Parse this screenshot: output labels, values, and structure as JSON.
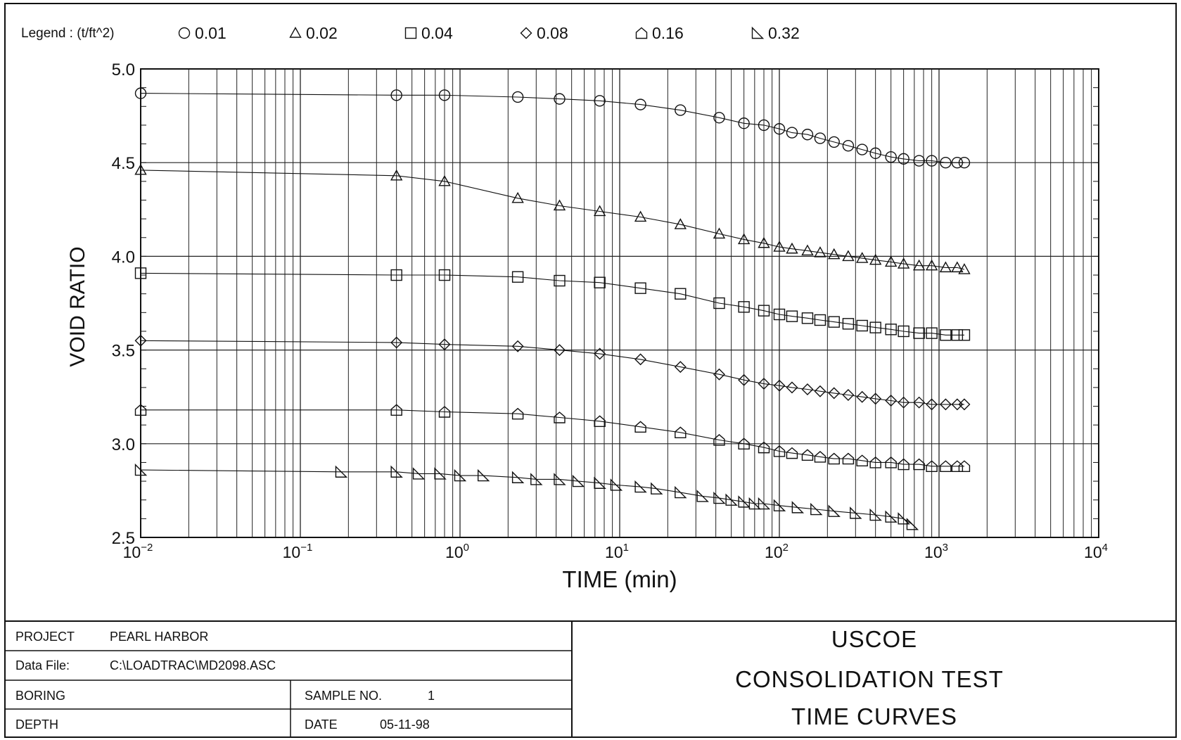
{
  "legend": {
    "label": "Legend : (t/ft^2)",
    "entries": [
      {
        "marker": "circle",
        "label": "0.01"
      },
      {
        "marker": "triangle",
        "label": "0.02"
      },
      {
        "marker": "square",
        "label": "0.04"
      },
      {
        "marker": "diamond",
        "label": "0.08"
      },
      {
        "marker": "house",
        "label": "0.16"
      },
      {
        "marker": "right-triangle",
        "label": "0.32"
      }
    ]
  },
  "chart_data": {
    "type": "scatter",
    "title": "",
    "xlabel": "TIME (min)",
    "ylabel": "VOID RATIO",
    "x_scale": "log",
    "xlim": [
      0.01,
      10000
    ],
    "ylim": [
      2.5,
      5.0
    ],
    "x_tick_labels": [
      {
        "base": "10",
        "exp": "−2",
        "value": 0.01
      },
      {
        "base": "10",
        "exp": "−1",
        "value": 0.1
      },
      {
        "base": "10",
        "exp": "0",
        "value": 1
      },
      {
        "base": "10",
        "exp": "1",
        "value": 10
      },
      {
        "base": "10",
        "exp": "2",
        "value": 100
      },
      {
        "base": "10",
        "exp": "3",
        "value": 1000
      },
      {
        "base": "10",
        "exp": "4",
        "value": 10000
      }
    ],
    "y_tick_labels": [
      "2.5",
      "3.0",
      "3.5",
      "4.0",
      "4.5",
      "5.0"
    ],
    "y_tick_values": [
      2.5,
      3.0,
      3.5,
      4.0,
      4.5,
      5.0
    ],
    "grid": true,
    "legend_position": "top",
    "series": [
      {
        "name": "0.01",
        "marker": "circle",
        "x": [
          0.01,
          0.4,
          0.8,
          2.3,
          4.2,
          7.5,
          13.5,
          24,
          42,
          60,
          80,
          100,
          120,
          150,
          180,
          220,
          270,
          330,
          400,
          500,
          600,
          750,
          900,
          1100,
          1300,
          1440
        ],
        "y": [
          4.87,
          4.86,
          4.86,
          4.85,
          4.84,
          4.83,
          4.81,
          4.78,
          4.74,
          4.71,
          4.7,
          4.68,
          4.66,
          4.65,
          4.63,
          4.61,
          4.59,
          4.57,
          4.55,
          4.53,
          4.52,
          4.51,
          4.51,
          4.5,
          4.5,
          4.5
        ]
      },
      {
        "name": "0.02",
        "marker": "triangle",
        "x": [
          0.01,
          0.4,
          0.8,
          2.3,
          4.2,
          7.5,
          13.5,
          24,
          42,
          60,
          80,
          100,
          120,
          150,
          180,
          220,
          270,
          330,
          400,
          500,
          600,
          750,
          900,
          1100,
          1300,
          1440
        ],
        "y": [
          4.46,
          4.43,
          4.4,
          4.31,
          4.27,
          4.24,
          4.21,
          4.17,
          4.12,
          4.09,
          4.07,
          4.05,
          4.04,
          4.03,
          4.02,
          4.01,
          4.0,
          3.99,
          3.98,
          3.97,
          3.96,
          3.95,
          3.95,
          3.94,
          3.94,
          3.93
        ]
      },
      {
        "name": "0.04",
        "marker": "square",
        "x": [
          0.01,
          0.4,
          0.8,
          2.3,
          4.2,
          7.5,
          13.5,
          24,
          42,
          60,
          80,
          100,
          120,
          150,
          180,
          220,
          270,
          330,
          400,
          500,
          600,
          750,
          900,
          1100,
          1300,
          1440
        ],
        "y": [
          3.91,
          3.9,
          3.9,
          3.89,
          3.87,
          3.86,
          3.83,
          3.8,
          3.75,
          3.73,
          3.71,
          3.69,
          3.68,
          3.67,
          3.66,
          3.65,
          3.64,
          3.63,
          3.62,
          3.61,
          3.6,
          3.59,
          3.59,
          3.58,
          3.58,
          3.58
        ]
      },
      {
        "name": "0.08",
        "marker": "diamond",
        "x": [
          0.01,
          0.4,
          0.8,
          2.3,
          4.2,
          7.5,
          13.5,
          24,
          42,
          60,
          80,
          100,
          120,
          150,
          180,
          220,
          270,
          330,
          400,
          500,
          600,
          750,
          900,
          1100,
          1300,
          1440
        ],
        "y": [
          3.55,
          3.54,
          3.53,
          3.52,
          3.5,
          3.48,
          3.45,
          3.41,
          3.37,
          3.34,
          3.32,
          3.31,
          3.3,
          3.29,
          3.28,
          3.27,
          3.26,
          3.25,
          3.24,
          3.23,
          3.22,
          3.22,
          3.21,
          3.21,
          3.21,
          3.21
        ]
      },
      {
        "name": "0.16",
        "marker": "house",
        "x": [
          0.01,
          0.4,
          0.8,
          2.3,
          4.2,
          7.5,
          13.5,
          24,
          42,
          60,
          80,
          100,
          120,
          150,
          180,
          220,
          270,
          330,
          400,
          500,
          600,
          750,
          900,
          1100,
          1300,
          1440
        ],
        "y": [
          3.18,
          3.18,
          3.17,
          3.16,
          3.14,
          3.12,
          3.09,
          3.06,
          3.02,
          3.0,
          2.98,
          2.96,
          2.95,
          2.94,
          2.93,
          2.92,
          2.92,
          2.91,
          2.9,
          2.9,
          2.89,
          2.89,
          2.88,
          2.88,
          2.88,
          2.88
        ]
      },
      {
        "name": "0.32",
        "marker": "right-triangle",
        "x": [
          0.01,
          0.18,
          0.4,
          0.55,
          0.75,
          1.0,
          1.4,
          2.3,
          3.0,
          4.2,
          5.5,
          7.5,
          9.5,
          13.5,
          17,
          24,
          33,
          42,
          50,
          60,
          70,
          80,
          100,
          130,
          170,
          220,
          300,
          400,
          500,
          600,
          680
        ],
        "y": [
          2.86,
          2.85,
          2.85,
          2.84,
          2.84,
          2.83,
          2.83,
          2.82,
          2.81,
          2.81,
          2.8,
          2.79,
          2.78,
          2.77,
          2.76,
          2.74,
          2.72,
          2.71,
          2.7,
          2.69,
          2.68,
          2.68,
          2.67,
          2.66,
          2.65,
          2.64,
          2.63,
          2.62,
          2.61,
          2.6,
          2.57
        ]
      }
    ]
  },
  "title_block": {
    "project_label": "PROJECT",
    "project_value": "PEARL HARBOR",
    "datafile_label": "Data File:",
    "datafile_value": "C:\\LOADTRAC\\MD2098.ASC",
    "boring_label": "BORING",
    "sample_label": "SAMPLE NO.",
    "sample_value": "1",
    "depth_label": "DEPTH",
    "date_label": "DATE",
    "date_value": "05-11-98",
    "org": "USCOE",
    "test_name": "CONSOLIDATION TEST",
    "sheet_name": "TIME CURVES"
  }
}
